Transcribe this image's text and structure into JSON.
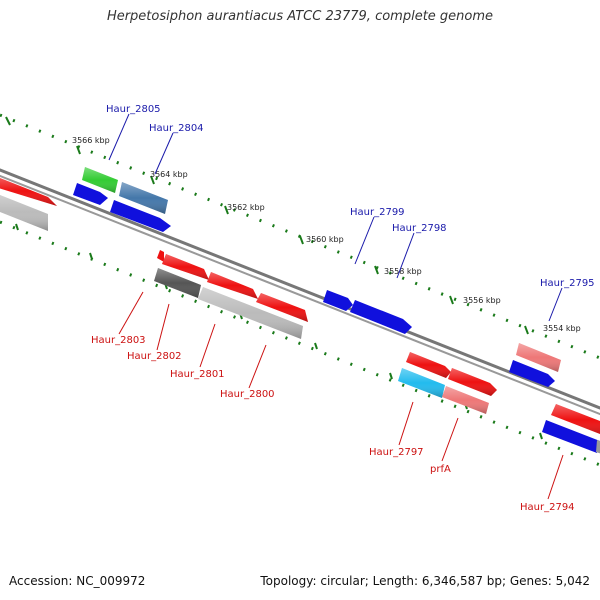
{
  "title": "Herpetosiphon aurantiacus ATCC 23779, complete genome",
  "footer": {
    "accession": "Accession: NC_009972",
    "summary": "Topology: circular; Length: 6,346,587 bp; Genes: 5,042"
  },
  "colors": {
    "backbone": "#777777",
    "tick": "#1a7a1a",
    "label_plus": "#1a1aaa",
    "label_minus": "#cc1111",
    "red": "#ee1111",
    "blue": "#1010dd",
    "green": "#33cc33",
    "steelblue": "#4477aa",
    "lightred": "#ee7777",
    "gray": "#aaaaaa",
    "darkgray": "#555555",
    "cyan": "#22bbee"
  },
  "scale_labels": [
    "3566 kbp",
    "3564 kbp",
    "3562 kbp",
    "3560 kbp",
    "3558 kbp",
    "3556 kbp",
    "3554 kbp"
  ],
  "gene_labels_top": [
    "Haur_2805",
    "Haur_2804",
    "Haur_2799",
    "Haur_2798",
    "Haur_2795"
  ],
  "gene_labels_bottom": [
    "Haur_2803",
    "Haur_2802",
    "Haur_2801",
    "Haur_2800",
    "Haur_2797",
    "prfA",
    "Haur_2794"
  ]
}
